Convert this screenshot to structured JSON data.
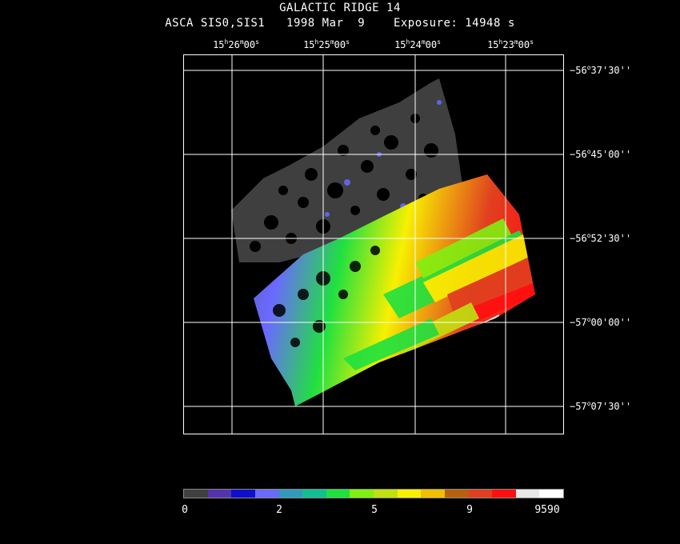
{
  "header": {
    "title": "GALACTIC RIDGE 14",
    "subtitle": "ASCA SIS0,SIS1   1998 Mar  9    Exposure: 14948 s"
  },
  "ra_ticks": [
    {
      "h": "15",
      "m": "26",
      "s": "00"
    },
    {
      "h": "15",
      "m": "25",
      "s": "00"
    },
    {
      "h": "15",
      "m": "24",
      "s": "00"
    },
    {
      "h": "15",
      "m": "23",
      "s": "00"
    }
  ],
  "dec_ticks": [
    {
      "d": "−56",
      "m": "37",
      "s": "30"
    },
    {
      "d": "−56",
      "m": "45",
      "s": "00"
    },
    {
      "d": "−56",
      "m": "52",
      "s": "30"
    },
    {
      "d": "−57",
      "m": "00",
      "s": "00"
    },
    {
      "d": "−57",
      "m": "07",
      "s": "30"
    }
  ],
  "colorbar": {
    "colors": [
      "#404040",
      "#5533aa",
      "#1010cc",
      "#6a6aff",
      "#3399bb",
      "#10c090",
      "#20e040",
      "#80f010",
      "#c0e010",
      "#f8f000",
      "#f0c000",
      "#b86010",
      "#e04020",
      "#ff1010",
      "#e8e8e8",
      "#ffffff"
    ],
    "labels": [
      "0",
      "2",
      "5",
      "9",
      "9590"
    ]
  }
}
